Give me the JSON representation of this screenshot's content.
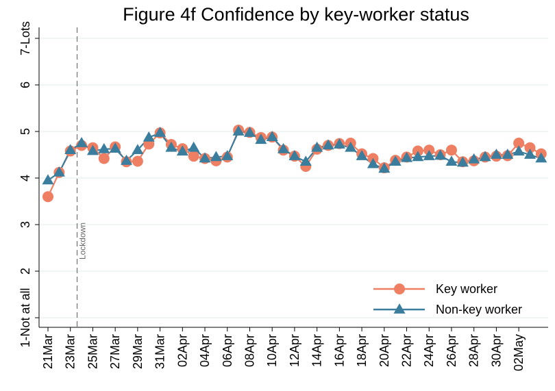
{
  "chart_data": {
    "type": "line",
    "title": "Figure 4f Confidence by key-worker status",
    "categories": [
      "21Mar",
      null,
      "23Mar",
      null,
      "25Mar",
      null,
      "27Mar",
      null,
      "29Mar",
      null,
      "31Mar",
      null,
      "02Apr",
      null,
      "04Apr",
      null,
      "06Apr",
      null,
      "08Apr",
      null,
      "10Apr",
      null,
      "12Apr",
      null,
      "14Apr",
      null,
      "16Apr",
      null,
      "18Apr",
      null,
      "20Apr",
      null,
      "22Apr",
      null,
      "24Apr",
      null,
      "26Apr",
      null,
      "28Apr",
      null,
      "30Apr",
      null,
      "02May",
      null,
      null
    ],
    "series": [
      {
        "name": "Key worker",
        "color": "#ee7f62",
        "marker": "circle",
        "values": [
          3.6,
          4.12,
          4.58,
          4.7,
          4.65,
          4.42,
          4.67,
          4.35,
          4.36,
          4.73,
          4.97,
          4.72,
          4.63,
          4.47,
          4.42,
          4.37,
          4.45,
          5.03,
          4.98,
          4.87,
          4.88,
          4.6,
          4.47,
          4.25,
          4.62,
          4.7,
          4.74,
          4.75,
          4.52,
          4.42,
          4.22,
          4.38,
          4.45,
          4.58,
          4.6,
          4.5,
          4.6,
          4.35,
          4.37,
          4.45,
          4.47,
          4.48,
          4.75,
          4.65,
          4.52
        ]
      },
      {
        "name": "Non-key worker",
        "color": "#3b7d9c",
        "marker": "triangle",
        "values": [
          3.95,
          4.12,
          4.6,
          4.75,
          4.58,
          4.62,
          4.63,
          4.37,
          4.6,
          4.87,
          4.97,
          4.65,
          4.57,
          4.65,
          4.42,
          4.45,
          4.47,
          5.0,
          4.97,
          4.82,
          4.88,
          4.62,
          4.47,
          4.35,
          4.65,
          4.7,
          4.72,
          4.65,
          4.47,
          4.3,
          4.2,
          4.35,
          4.43,
          4.45,
          4.47,
          4.48,
          4.35,
          4.33,
          4.4,
          4.45,
          4.5,
          4.5,
          4.57,
          4.5,
          4.42
        ]
      }
    ],
    "ylim": [
      1,
      7
    ],
    "yticks": [
      {
        "value": 1,
        "label": "1-Not at all"
      },
      2,
      3,
      4,
      5,
      6,
      {
        "value": 7,
        "label": "7-Lots"
      }
    ],
    "grid": true,
    "vline": {
      "x": 2.6,
      "label": "Lockdown"
    },
    "legend": "bottom-right"
  }
}
